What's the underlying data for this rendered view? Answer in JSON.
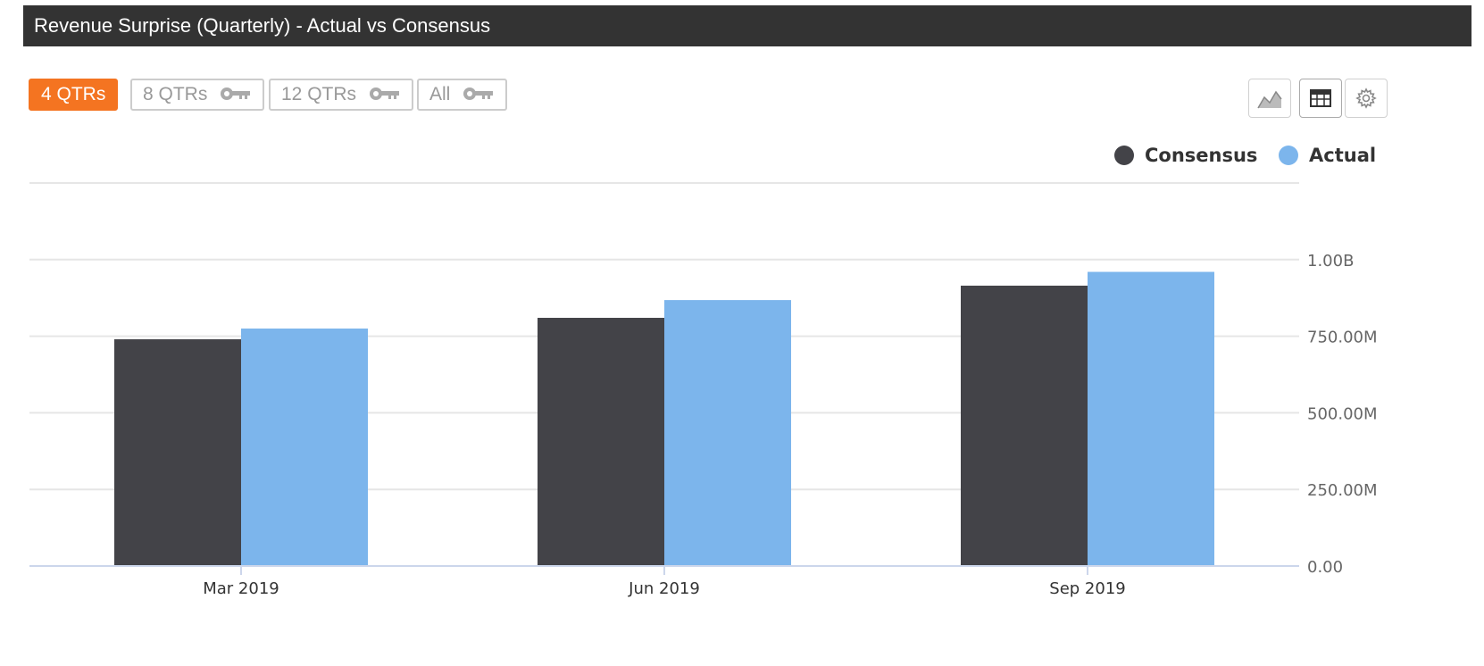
{
  "header": {
    "title": "Revenue Surprise (Quarterly) - Actual vs Consensus"
  },
  "range_buttons": [
    {
      "label": "4 QTRs",
      "active": true,
      "locked": false
    },
    {
      "label": "8 QTRs",
      "active": false,
      "locked": true
    },
    {
      "label": "12 QTRs",
      "active": false,
      "locked": true
    },
    {
      "label": "All",
      "active": false,
      "locked": true
    }
  ],
  "toolbar": {
    "icons": [
      "area-chart-icon",
      "table-icon",
      "gear-icon"
    ]
  },
  "legend": [
    {
      "label": "Consensus",
      "color": "#434348"
    },
    {
      "label": "Actual",
      "color": "#7cb5ec"
    }
  ],
  "chart_data": {
    "type": "bar",
    "categories": [
      "Mar 2019",
      "Jun 2019",
      "Sep 2019"
    ],
    "series": [
      {
        "name": "Consensus",
        "color": "#434348",
        "values": [
          740000000,
          810000000,
          915000000
        ]
      },
      {
        "name": "Actual",
        "color": "#7cb5ec",
        "values": [
          775000000,
          868000000,
          960000000
        ]
      }
    ],
    "ylim": [
      0,
      1250000000
    ],
    "yticks": [
      0,
      250000000,
      500000000,
      750000000,
      1000000000
    ],
    "ytick_labels": [
      "0.00",
      "250.00M",
      "500.00M",
      "750.00M",
      "1.00B"
    ],
    "grid": true,
    "legend_position": "top-right"
  }
}
